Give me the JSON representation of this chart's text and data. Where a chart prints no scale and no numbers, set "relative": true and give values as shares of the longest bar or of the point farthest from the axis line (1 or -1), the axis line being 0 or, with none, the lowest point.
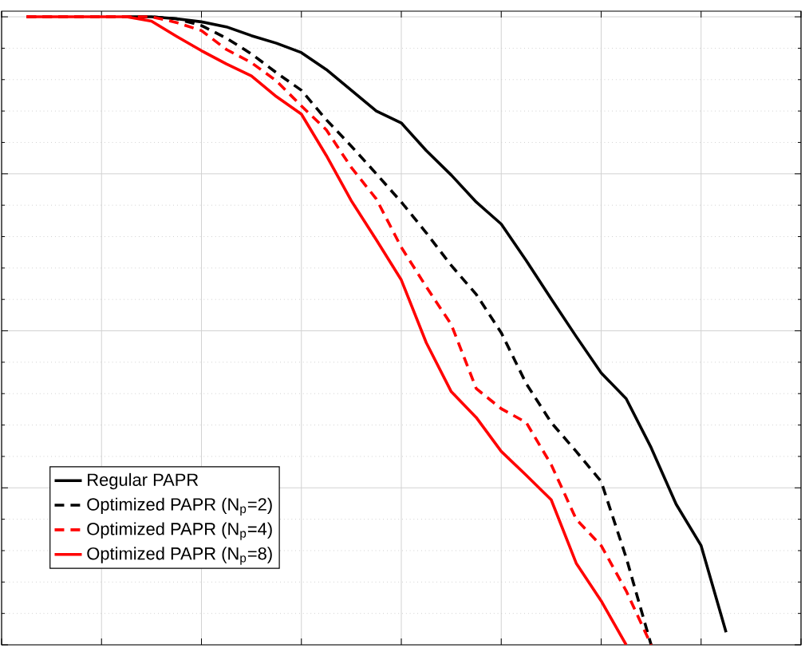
{
  "chart_data": {
    "type": "line",
    "relative": true,
    "grid": true,
    "legend": "bottom left",
    "categories": [
      null,
      null,
      null,
      null,
      null,
      null,
      null,
      null,
      null,
      null,
      null,
      null,
      null,
      null,
      null,
      null,
      null,
      null,
      null,
      null,
      null,
      null,
      null,
      null,
      null,
      null,
      null,
      null,
      null,
      null,
      null,
      null,
      null
    ],
    "series": [
      {
        "name": "Regular PAPR",
        "color": "#000000",
        "line_style": "solid",
        "values": [
          null,
          null,
          null,
          null,
          null,
          1,
          1,
          0.997,
          0.992,
          0.984,
          0.97,
          0.958,
          0.943,
          0.916,
          0.883,
          0.85,
          0.831,
          0.787,
          0.748,
          0.705,
          0.67,
          0.612,
          0.551,
          0.491,
          0.433,
          0.392,
          0.314,
          0.224,
          0.158,
          0.02,
          null,
          null,
          null
        ]
      },
      {
        "name": "Optimized PAPR (N$_{p}$=2)",
        "color": "#000000",
        "line_style": "dashed",
        "values": [
          null,
          1,
          1,
          1,
          1,
          1,
          1,
          0.997,
          0.986,
          0.966,
          0.941,
          0.911,
          0.883,
          0.836,
          0.794,
          0.75,
          0.705,
          0.656,
          0.604,
          0.558,
          0.497,
          0.416,
          0.354,
          0.308,
          0.26,
          0.139,
          0,
          null,
          null,
          null,
          null,
          null,
          null
        ]
      },
      {
        "name": "Optimized PAPR (N$_{p}$=4)",
        "color": "#ff0000",
        "line_style": "dashed",
        "values": [
          null,
          1,
          1,
          1,
          1,
          1,
          1,
          0.991,
          0.978,
          0.948,
          0.927,
          0.898,
          0.858,
          0.82,
          0.76,
          0.71,
          0.633,
          0.57,
          0.51,
          0.408,
          0.376,
          0.354,
          0.287,
          0.2,
          0.158,
          0.086,
          0,
          null,
          null,
          null,
          null,
          null,
          null
        ]
      },
      {
        "name": "Optimized PAPR (N$_{p}$=8)",
        "color": "#ff0000",
        "line_style": "solid",
        "values": [
          null,
          1,
          1,
          1,
          1,
          1,
          0.993,
          0.969,
          0.946,
          0.925,
          0.906,
          0.873,
          0.845,
          0.779,
          0.707,
          0.645,
          0.581,
          0.481,
          0.403,
          0.362,
          0.308,
          0.27,
          0.231,
          0.13,
          0.07,
          0,
          null,
          null,
          null,
          null,
          null,
          null,
          null
        ]
      }
    ]
  }
}
